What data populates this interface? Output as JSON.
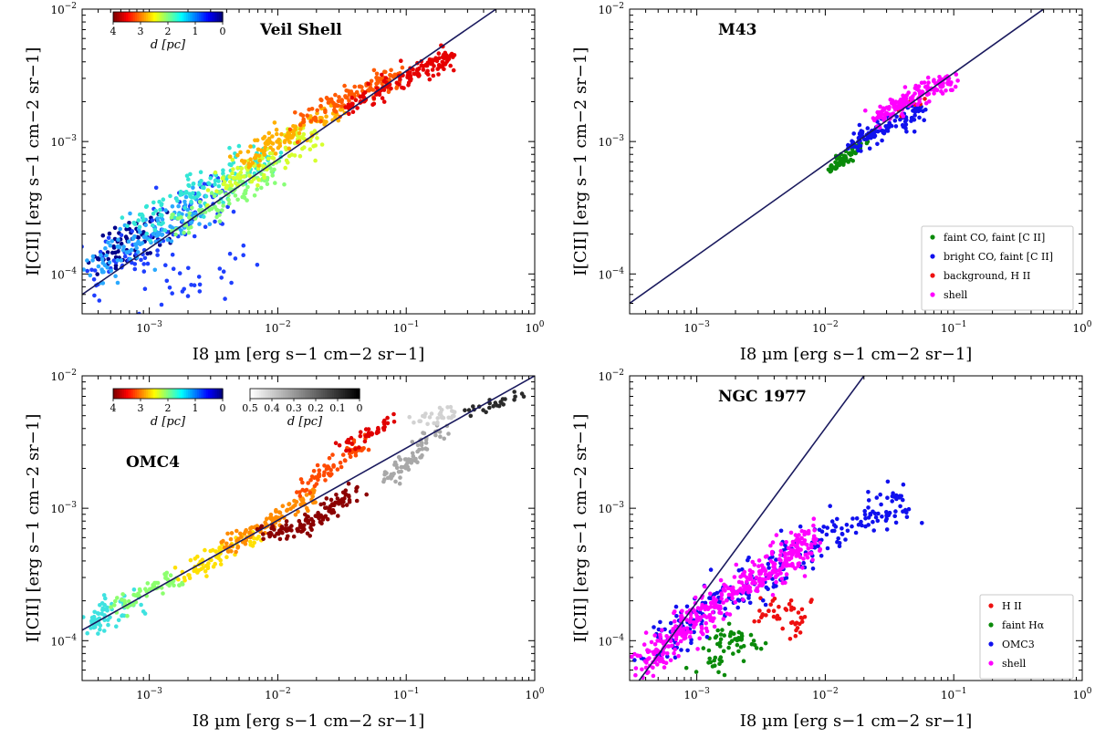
{
  "chart_data": [
    {
      "type": "scatter",
      "title": "Veil Shell",
      "xlabel": "I8 µm [erg s−1 cm−2 sr−1]",
      "ylabel": "I[CII] [erg s−1 cm−2 sr−1]",
      "xscale": "log",
      "yscale": "log",
      "xlim": [
        0.0003,
        1
      ],
      "ylim": [
        5e-05,
        0.01
      ],
      "x_ticks": [
        "10−3",
        "10−2",
        "10−1",
        "100"
      ],
      "y_ticks": [
        "10−4",
        "10−3",
        "10−2"
      ],
      "fit_line": {
        "x": [
          0.0003,
          0.5
        ],
        "y": [
          7e-05,
          0.01
        ]
      },
      "colorbar": {
        "label": "d [pc]",
        "ticks": [
          "4",
          "3",
          "2",
          "1",
          "0"
        ],
        "range": [
          4,
          0
        ],
        "cmap": "jet"
      },
      "series": [
        {
          "color": "#00008b",
          "x": [
            0.00035,
            0.0005,
            0.0007,
            0.0009,
            0.0012
          ],
          "y": [
            0.00013,
            0.00015,
            0.00018,
            0.0002,
            0.00023
          ],
          "spread": 0.13,
          "n": 70
        },
        {
          "color": "#1f3fff",
          "x": [
            0.00035,
            0.0006,
            0.001,
            0.0016,
            0.0025,
            0.004
          ],
          "y": [
            0.0001,
            0.00013,
            0.00017,
            0.00023,
            0.0003,
            0.0004
          ],
          "spread": 0.14,
          "n": 110
        },
        {
          "color": "#1f3fff",
          "x": [
            0.0008,
            0.0012,
            0.0018,
            0.0025,
            0.004,
            0.006
          ],
          "y": [
            5.8e-05,
            7e-05,
            8e-05,
            7.5e-05,
            9e-05,
            0.00015
          ],
          "spread": 0.12,
          "n": 28
        },
        {
          "color": "#2aa9ff",
          "x": [
            0.00035,
            0.0006,
            0.001,
            0.0016,
            0.0025
          ],
          "y": [
            0.00011,
            0.00015,
            0.0002,
            0.00026,
            0.00032
          ],
          "spread": 0.11,
          "n": 120
        },
        {
          "color": "#33e6d6",
          "x": [
            0.0008,
            0.0013,
            0.002,
            0.003,
            0.005,
            0.008
          ],
          "y": [
            0.00022,
            0.0003,
            0.00038,
            0.00048,
            0.00062,
            0.0008
          ],
          "spread": 0.1,
          "n": 130
        },
        {
          "color": "#88ff77",
          "x": [
            0.0015,
            0.0025,
            0.004,
            0.006,
            0.009
          ],
          "y": [
            0.00022,
            0.0003,
            0.0004,
            0.00052,
            0.00065
          ],
          "spread": 0.09,
          "n": 110
        },
        {
          "color": "#d6ff2e",
          "x": [
            0.003,
            0.005,
            0.008,
            0.012,
            0.018
          ],
          "y": [
            0.0004,
            0.00055,
            0.0007,
            0.0009,
            0.0011
          ],
          "spread": 0.08,
          "n": 100
        },
        {
          "color": "#ffb000",
          "x": [
            0.005,
            0.008,
            0.012,
            0.02,
            0.03
          ],
          "y": [
            0.0007,
            0.0009,
            0.0011,
            0.0014,
            0.0017
          ],
          "spread": 0.07,
          "n": 110
        },
        {
          "color": "#ff5a00",
          "x": [
            0.015,
            0.025,
            0.04,
            0.06,
            0.09
          ],
          "y": [
            0.0014,
            0.0018,
            0.0023,
            0.0028,
            0.0033
          ],
          "spread": 0.06,
          "n": 130
        },
        {
          "color": "#e60000",
          "x": [
            0.035,
            0.06,
            0.1,
            0.15,
            0.22
          ],
          "y": [
            0.0018,
            0.0024,
            0.003,
            0.0037,
            0.0043
          ],
          "spread": 0.055,
          "n": 150
        }
      ]
    },
    {
      "type": "scatter",
      "title": "M43",
      "xlabel": "I8 µm [erg s−1 cm−2 sr−1]",
      "ylabel": "I[CII] [erg s−1 cm−2 sr−1]",
      "xscale": "log",
      "yscale": "log",
      "xlim": [
        0.0003,
        1
      ],
      "ylim": [
        5e-05,
        0.01
      ],
      "x_ticks": [
        "10−3",
        "10−2",
        "10−1",
        "100"
      ],
      "y_ticks": [
        "10−4",
        "10−3",
        "10−2"
      ],
      "fit_line": {
        "x": [
          0.0003,
          0.5
        ],
        "y": [
          6e-05,
          0.01
        ]
      },
      "legend": {
        "position": "lower right"
      },
      "series": [
        {
          "name": "faint CO, faint [C II]",
          "color": "#0a8a0a",
          "x": [
            0.011,
            0.013,
            0.015,
            0.018,
            0.021
          ],
          "y": [
            0.0006,
            0.00068,
            0.00078,
            0.0009,
            0.001
          ],
          "spread": 0.03,
          "n": 70
        },
        {
          "name": "bright CO, faint [C II]",
          "color": "#1010ee",
          "x": [
            0.016,
            0.02,
            0.026,
            0.033,
            0.043,
            0.055
          ],
          "y": [
            0.0009,
            0.0011,
            0.0012,
            0.0013,
            0.0015,
            0.0018
          ],
          "spread": 0.06,
          "n": 120
        },
        {
          "name": "background, H II",
          "color": "#ee1010",
          "x": [
            0.035,
            0.045,
            0.06
          ],
          "y": [
            0.0017,
            0.0019,
            0.0021
          ],
          "spread": 0.04,
          "n": 8
        },
        {
          "name": "shell",
          "color": "#ff00ff",
          "x": [
            0.025,
            0.035,
            0.05,
            0.07,
            0.1
          ],
          "y": [
            0.0015,
            0.0018,
            0.0022,
            0.0026,
            0.003
          ],
          "spread": 0.05,
          "n": 160
        }
      ]
    },
    {
      "type": "scatter",
      "title": "OMC4",
      "xlabel": "I8 µm [erg s−1 cm−2 sr−1]",
      "ylabel": "I[CII] [erg s−1 cm−2 sr−1]",
      "xscale": "log",
      "yscale": "log",
      "xlim": [
        0.0003,
        1
      ],
      "ylim": [
        5e-05,
        0.01
      ],
      "x_ticks": [
        "10−3",
        "10−2",
        "10−1",
        "100"
      ],
      "y_ticks": [
        "10−4",
        "10−3",
        "10−2"
      ],
      "fit_line": {
        "x": [
          0.0003,
          1
        ],
        "y": [
          0.00012,
          0.01
        ]
      },
      "colorbar": {
        "label": "d [pc]",
        "ticks": [
          "4",
          "3",
          "2",
          "1",
          "0"
        ],
        "range": [
          4,
          0
        ],
        "cmap": "jet"
      },
      "colorbar2": {
        "label": "d [pc]",
        "ticks": [
          "0.5",
          "0.4",
          "0.3",
          "0.2",
          "0.1",
          "0"
        ],
        "range": [
          0.5,
          0
        ],
        "cmap": "greys"
      },
      "series": [
        {
          "color": "#3fe2e0",
          "x": [
            0.00033,
            0.0004,
            0.0005,
            0.0007,
            0.0009
          ],
          "y": [
            0.00013,
            0.00015,
            0.00017,
            0.00019,
            0.00021
          ],
          "spread": 0.08,
          "n": 70
        },
        {
          "color": "#8cff6e",
          "x": [
            0.0005,
            0.0008,
            0.0012,
            0.0016
          ],
          "y": [
            0.00017,
            0.00021,
            0.00026,
            0.0003
          ],
          "spread": 0.06,
          "n": 60
        },
        {
          "color": "#ffe000",
          "x": [
            0.0018,
            0.0025,
            0.0035,
            0.005,
            0.007
          ],
          "y": [
            0.0003,
            0.00037,
            0.00045,
            0.00055,
            0.00065
          ],
          "spread": 0.05,
          "n": 80
        },
        {
          "color": "#ff8c00",
          "x": [
            0.004,
            0.006,
            0.009,
            0.013,
            0.02
          ],
          "y": [
            0.0005,
            0.00065,
            0.0008,
            0.001,
            0.0013
          ],
          "spread": 0.05,
          "n": 110
        },
        {
          "color": "#ff4a00",
          "x": [
            0.015,
            0.022,
            0.032,
            0.045
          ],
          "y": [
            0.0013,
            0.0018,
            0.0024,
            0.0032
          ],
          "spread": 0.05,
          "n": 70
        },
        {
          "color": "#e00000",
          "x": [
            0.03,
            0.045,
            0.06,
            0.08
          ],
          "y": [
            0.0028,
            0.0034,
            0.004,
            0.0046
          ],
          "spread": 0.04,
          "n": 40
        },
        {
          "color": "#8b0000",
          "x": [
            0.007,
            0.01,
            0.015,
            0.02,
            0.03,
            0.04
          ],
          "y": [
            0.00065,
            0.00066,
            0.0007,
            0.00085,
            0.0011,
            0.0014
          ],
          "spread": 0.05,
          "n": 120
        },
        {
          "color": "#a8a8a8",
          "x": [
            0.07,
            0.1,
            0.14,
            0.2
          ],
          "y": [
            0.0016,
            0.0022,
            0.003,
            0.004
          ],
          "spread": 0.05,
          "n": 70
        },
        {
          "color": "#d2d2d2",
          "x": [
            0.12,
            0.18,
            0.25
          ],
          "y": [
            0.0045,
            0.005,
            0.0055
          ],
          "spread": 0.04,
          "n": 30
        },
        {
          "color": "#2a2a2a",
          "x": [
            0.3,
            0.45,
            0.6,
            0.8
          ],
          "y": [
            0.0055,
            0.006,
            0.0066,
            0.0072
          ],
          "spread": 0.03,
          "n": 25
        }
      ]
    },
    {
      "type": "scatter",
      "title": "NGC 1977",
      "xlabel": "I8 µm [erg s−1 cm−2 sr−1]",
      "ylabel": "I[CII] [erg s−1 cm−2 sr−1]",
      "xscale": "log",
      "yscale": "log",
      "xlim": [
        0.0003,
        1
      ],
      "ylim": [
        5e-05,
        0.01
      ],
      "x_ticks": [
        "10−3",
        "10−2",
        "10−1",
        "100"
      ],
      "y_ticks": [
        "10−4",
        "10−3",
        "10−2"
      ],
      "fit_line": {
        "x": [
          0.0003,
          0.02
        ],
        "y": [
          4e-05,
          0.01
        ]
      },
      "legend": {
        "position": "lower right"
      },
      "series": [
        {
          "name": "H II",
          "color": "#ee1010",
          "x": [
            0.003,
            0.004,
            0.005,
            0.006,
            0.008
          ],
          "y": [
            0.00015,
            0.00018,
            0.00016,
            0.00013,
            0.00017
          ],
          "spread": 0.09,
          "n": 45
        },
        {
          "name": "faint Hα",
          "color": "#0a8a0a",
          "x": [
            0.0012,
            0.0016,
            0.002,
            0.0025
          ],
          "y": [
            6e-05,
            9e-05,
            0.00012,
            8e-05
          ],
          "spread": 0.1,
          "n": 60
        },
        {
          "name": "OMC3",
          "color": "#1010ee",
          "x": [
            0.0004,
            0.0008,
            0.0015,
            0.003,
            0.006,
            0.012,
            0.025,
            0.045
          ],
          "y": [
            7e-05,
            0.00013,
            0.0002,
            0.0003,
            0.00045,
            0.0007,
            0.0009,
            0.0012
          ],
          "spread": 0.1,
          "n": 260
        },
        {
          "name": "shell",
          "color": "#ff00ff",
          "x": [
            0.00035,
            0.0006,
            0.001,
            0.0018,
            0.003,
            0.005,
            0.008
          ],
          "y": [
            6e-05,
            0.0001,
            0.00015,
            0.00022,
            0.0003,
            0.00042,
            0.0006
          ],
          "spread": 0.09,
          "n": 420
        }
      ]
    }
  ]
}
